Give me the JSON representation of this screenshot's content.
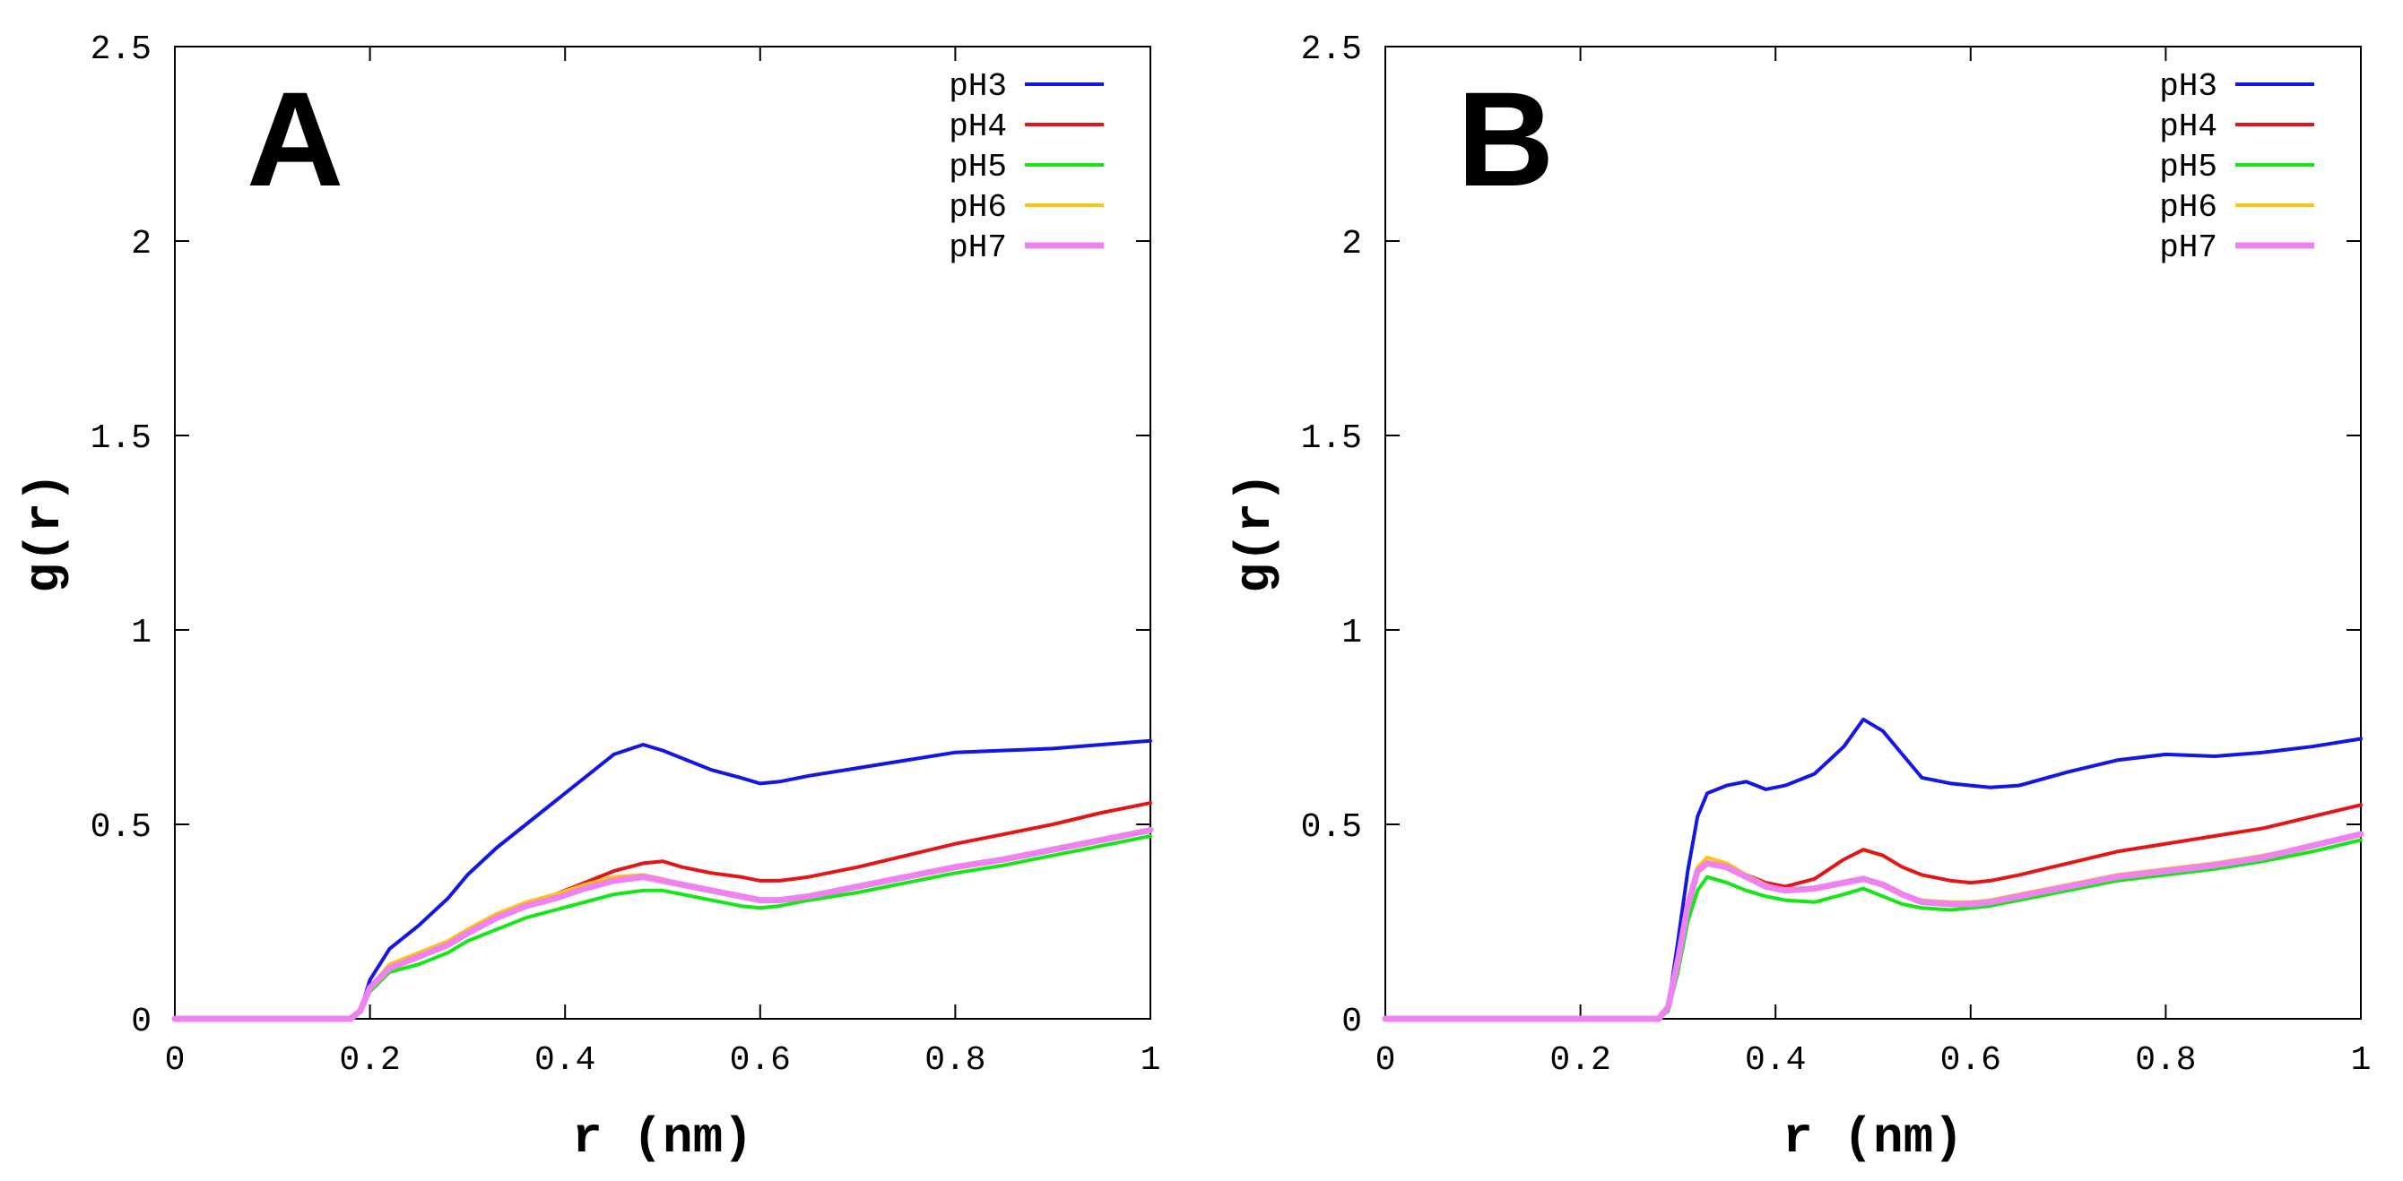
{
  "chart_data": [
    {
      "type": "line",
      "panel_label": "A",
      "xlabel": "r (nm)",
      "ylabel": "g(r)",
      "xlim": [
        0,
        1
      ],
      "ylim": [
        0,
        2.5
      ],
      "xticks": [
        0,
        0.2,
        0.4,
        0.6,
        0.8,
        1
      ],
      "xtick_labels": [
        "0",
        "0.2",
        "0.4",
        "0.6",
        "0.8",
        "1"
      ],
      "yticks": [
        0,
        0.5,
        1,
        1.5,
        2,
        2.5
      ],
      "ytick_labels": [
        "0",
        "0.5",
        "1",
        "1.5",
        "2",
        "2.5"
      ],
      "legend_position": "top-right",
      "series": [
        {
          "name": "pH3",
          "color": "#1515e6",
          "x": [
            0,
            0.18,
            0.19,
            0.2,
            0.22,
            0.25,
            0.28,
            0.3,
            0.33,
            0.36,
            0.39,
            0.42,
            0.45,
            0.48,
            0.5,
            0.52,
            0.55,
            0.58,
            0.6,
            0.62,
            0.65,
            0.7,
            0.75,
            0.8,
            0.85,
            0.9,
            0.95,
            1.0
          ],
          "y": [
            0,
            0,
            0.02,
            0.1,
            0.18,
            0.24,
            0.31,
            0.37,
            0.44,
            0.5,
            0.56,
            0.62,
            0.68,
            0.705,
            0.69,
            0.67,
            0.64,
            0.62,
            0.605,
            0.61,
            0.625,
            0.645,
            0.665,
            0.685,
            0.69,
            0.695,
            0.705,
            0.715
          ]
        },
        {
          "name": "pH4",
          "color": "#e61515",
          "x": [
            0,
            0.18,
            0.19,
            0.2,
            0.22,
            0.25,
            0.28,
            0.3,
            0.33,
            0.36,
            0.39,
            0.42,
            0.45,
            0.48,
            0.5,
            0.52,
            0.55,
            0.58,
            0.6,
            0.62,
            0.65,
            0.7,
            0.75,
            0.8,
            0.85,
            0.9,
            0.95,
            1.0
          ],
          "y": [
            0,
            0,
            0.02,
            0.08,
            0.13,
            0.16,
            0.19,
            0.22,
            0.26,
            0.29,
            0.32,
            0.35,
            0.38,
            0.4,
            0.405,
            0.39,
            0.375,
            0.365,
            0.355,
            0.355,
            0.365,
            0.39,
            0.42,
            0.45,
            0.475,
            0.5,
            0.53,
            0.555
          ]
        },
        {
          "name": "pH5",
          "color": "#15e615",
          "x": [
            0,
            0.18,
            0.19,
            0.2,
            0.22,
            0.25,
            0.28,
            0.3,
            0.33,
            0.36,
            0.39,
            0.42,
            0.45,
            0.48,
            0.5,
            0.52,
            0.55,
            0.58,
            0.6,
            0.62,
            0.65,
            0.7,
            0.75,
            0.8,
            0.85,
            0.9,
            0.95,
            1.0
          ],
          "y": [
            0,
            0,
            0.02,
            0.07,
            0.12,
            0.14,
            0.17,
            0.2,
            0.23,
            0.26,
            0.28,
            0.3,
            0.32,
            0.33,
            0.33,
            0.32,
            0.305,
            0.29,
            0.285,
            0.29,
            0.305,
            0.325,
            0.35,
            0.375,
            0.395,
            0.42,
            0.445,
            0.47
          ]
        },
        {
          "name": "pH6",
          "color": "#ffc20e",
          "x": [
            0,
            0.18,
            0.19,
            0.2,
            0.22,
            0.25,
            0.28,
            0.3,
            0.33,
            0.36,
            0.39,
            0.42,
            0.45,
            0.48,
            0.5,
            0.52,
            0.55,
            0.58,
            0.6,
            0.62,
            0.65,
            0.7,
            0.75,
            0.8,
            0.85,
            0.9,
            0.95,
            1.0
          ],
          "y": [
            0,
            0,
            0.02,
            0.08,
            0.14,
            0.17,
            0.2,
            0.23,
            0.27,
            0.3,
            0.32,
            0.345,
            0.365,
            0.37,
            0.36,
            0.345,
            0.33,
            0.315,
            0.305,
            0.305,
            0.315,
            0.34,
            0.365,
            0.39,
            0.41,
            0.435,
            0.46,
            0.485
          ]
        },
        {
          "name": "pH7",
          "color": "#ee82ee",
          "x": [
            0,
            0.18,
            0.19,
            0.2,
            0.22,
            0.25,
            0.28,
            0.3,
            0.33,
            0.36,
            0.39,
            0.42,
            0.45,
            0.48,
            0.5,
            0.52,
            0.55,
            0.58,
            0.6,
            0.62,
            0.65,
            0.7,
            0.75,
            0.8,
            0.85,
            0.9,
            0.95,
            1.0
          ],
          "y": [
            0,
            0,
            0.02,
            0.08,
            0.13,
            0.16,
            0.19,
            0.22,
            0.26,
            0.29,
            0.31,
            0.335,
            0.355,
            0.365,
            0.355,
            0.345,
            0.33,
            0.315,
            0.305,
            0.305,
            0.315,
            0.34,
            0.365,
            0.39,
            0.41,
            0.435,
            0.46,
            0.485
          ]
        }
      ]
    },
    {
      "type": "line",
      "panel_label": "B",
      "xlabel": "r (nm)",
      "ylabel": "g(r)",
      "xlim": [
        0,
        1
      ],
      "ylim": [
        0,
        2.5
      ],
      "xticks": [
        0,
        0.2,
        0.4,
        0.6,
        0.8,
        1
      ],
      "xtick_labels": [
        "0",
        "0.2",
        "0.4",
        "0.6",
        "0.8",
        "1"
      ],
      "yticks": [
        0,
        0.5,
        1,
        1.5,
        2,
        2.5
      ],
      "ytick_labels": [
        "0",
        "0.5",
        "1",
        "1.5",
        "2",
        "2.5"
      ],
      "legend_position": "top-right",
      "series": [
        {
          "name": "pH3",
          "color": "#1515e6",
          "x": [
            0,
            0.28,
            0.29,
            0.3,
            0.31,
            0.32,
            0.33,
            0.35,
            0.37,
            0.39,
            0.41,
            0.44,
            0.47,
            0.49,
            0.51,
            0.53,
            0.55,
            0.58,
            0.6,
            0.62,
            0.65,
            0.7,
            0.75,
            0.8,
            0.85,
            0.9,
            0.95,
            1.0
          ],
          "y": [
            0,
            0,
            0.03,
            0.2,
            0.38,
            0.52,
            0.58,
            0.6,
            0.61,
            0.59,
            0.6,
            0.63,
            0.7,
            0.77,
            0.74,
            0.68,
            0.62,
            0.605,
            0.6,
            0.595,
            0.6,
            0.635,
            0.665,
            0.68,
            0.675,
            0.685,
            0.7,
            0.72
          ]
        },
        {
          "name": "pH4",
          "color": "#e61515",
          "x": [
            0,
            0.28,
            0.29,
            0.3,
            0.31,
            0.32,
            0.33,
            0.35,
            0.37,
            0.39,
            0.41,
            0.44,
            0.47,
            0.49,
            0.51,
            0.53,
            0.55,
            0.58,
            0.6,
            0.62,
            0.65,
            0.7,
            0.75,
            0.8,
            0.85,
            0.9,
            0.95,
            1.0
          ],
          "y": [
            0,
            0,
            0.03,
            0.15,
            0.3,
            0.38,
            0.4,
            0.39,
            0.37,
            0.35,
            0.34,
            0.36,
            0.41,
            0.435,
            0.42,
            0.39,
            0.37,
            0.355,
            0.35,
            0.355,
            0.37,
            0.4,
            0.43,
            0.45,
            0.47,
            0.49,
            0.52,
            0.55
          ]
        },
        {
          "name": "pH5",
          "color": "#15e615",
          "x": [
            0,
            0.28,
            0.29,
            0.3,
            0.31,
            0.32,
            0.33,
            0.35,
            0.37,
            0.39,
            0.41,
            0.44,
            0.47,
            0.49,
            0.51,
            0.53,
            0.55,
            0.58,
            0.6,
            0.62,
            0.65,
            0.7,
            0.75,
            0.8,
            0.85,
            0.9,
            0.95,
            1.0
          ],
          "y": [
            0,
            0,
            0.02,
            0.12,
            0.25,
            0.33,
            0.365,
            0.35,
            0.33,
            0.315,
            0.305,
            0.3,
            0.32,
            0.335,
            0.315,
            0.295,
            0.285,
            0.28,
            0.285,
            0.29,
            0.305,
            0.33,
            0.355,
            0.37,
            0.385,
            0.405,
            0.43,
            0.46
          ]
        },
        {
          "name": "pH6",
          "color": "#ffc20e",
          "x": [
            0,
            0.28,
            0.29,
            0.3,
            0.31,
            0.32,
            0.33,
            0.35,
            0.37,
            0.39,
            0.41,
            0.44,
            0.47,
            0.49,
            0.51,
            0.53,
            0.55,
            0.58,
            0.6,
            0.62,
            0.65,
            0.7,
            0.75,
            0.8,
            0.85,
            0.9,
            0.95,
            1.0
          ],
          "y": [
            0,
            0,
            0.03,
            0.15,
            0.3,
            0.39,
            0.415,
            0.4,
            0.37,
            0.345,
            0.33,
            0.335,
            0.35,
            0.36,
            0.345,
            0.32,
            0.305,
            0.3,
            0.3,
            0.305,
            0.32,
            0.345,
            0.37,
            0.385,
            0.4,
            0.42,
            0.445,
            0.475
          ]
        },
        {
          "name": "pH7",
          "color": "#ee82ee",
          "x": [
            0,
            0.28,
            0.29,
            0.3,
            0.31,
            0.32,
            0.33,
            0.35,
            0.37,
            0.39,
            0.41,
            0.44,
            0.47,
            0.49,
            0.51,
            0.53,
            0.55,
            0.58,
            0.6,
            0.62,
            0.65,
            0.7,
            0.75,
            0.8,
            0.85,
            0.9,
            0.95,
            1.0
          ],
          "y": [
            0,
            0,
            0.03,
            0.15,
            0.29,
            0.38,
            0.4,
            0.39,
            0.365,
            0.34,
            0.33,
            0.335,
            0.35,
            0.36,
            0.345,
            0.32,
            0.3,
            0.295,
            0.295,
            0.3,
            0.315,
            0.34,
            0.365,
            0.38,
            0.395,
            0.415,
            0.445,
            0.475
          ]
        }
      ]
    }
  ]
}
